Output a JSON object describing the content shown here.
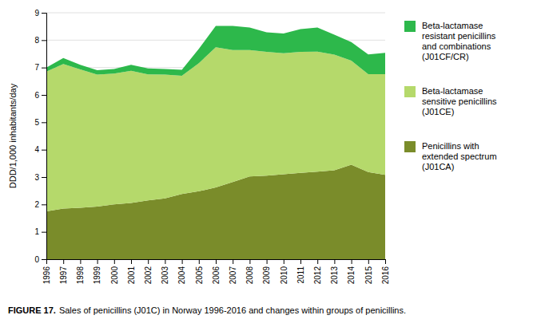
{
  "chart_data": {
    "type": "area",
    "stacked": true,
    "grid": true,
    "y_label": "DDD/1,000 inhabitants/day",
    "annotations": [
      "FIGURE 17.",
      "Sales of penicillins (J01C) in Norway 1996-2016 and changes within groups of penicillins."
    ],
    "x": [
      1996,
      1997,
      1998,
      1999,
      2000,
      2001,
      2002,
      2003,
      2004,
      2005,
      2006,
      2007,
      2008,
      2009,
      2010,
      2011,
      2012,
      2013,
      2014,
      2015,
      2016
    ],
    "xlim": [
      1996,
      2016
    ],
    "xticks": [
      1996,
      1997,
      1998,
      1999,
      2000,
      2001,
      2002,
      2003,
      2004,
      2005,
      2006,
      2007,
      2008,
      2009,
      2010,
      2011,
      2012,
      2013,
      2014,
      2015,
      2016
    ],
    "ylim": [
      0,
      9
    ],
    "yticks": [
      0,
      1,
      2,
      3,
      4,
      5,
      6,
      7,
      8,
      9
    ],
    "series": [
      {
        "name": "Penicillins with\nextended spectrum\n(J01CA)",
        "color": "#7a8c2a",
        "values": [
          1.75,
          1.85,
          1.88,
          1.92,
          2.0,
          2.05,
          2.15,
          2.22,
          2.38,
          2.48,
          2.62,
          2.82,
          3.02,
          3.05,
          3.1,
          3.15,
          3.2,
          3.25,
          3.45,
          3.18,
          3.08
        ]
      },
      {
        "name": "Beta-lactamase\nsensitive penicillins\n(J01CE)",
        "color": "#b5d96b",
        "values": [
          5.1,
          5.28,
          5.05,
          4.82,
          4.78,
          4.83,
          4.6,
          4.52,
          4.32,
          4.68,
          5.12,
          4.82,
          4.62,
          4.52,
          4.42,
          4.42,
          4.38,
          4.22,
          3.8,
          3.58,
          3.68
        ]
      },
      {
        "name": "Beta-lactamase\nresistant penicillins\nand combinations\n(J01CF/CR)",
        "color": "#2db84b",
        "values": [
          0.15,
          0.22,
          0.17,
          0.16,
          0.17,
          0.22,
          0.22,
          0.21,
          0.22,
          0.52,
          0.78,
          0.88,
          0.82,
          0.72,
          0.72,
          0.83,
          0.88,
          0.73,
          0.68,
          0.72,
          0.78
        ]
      }
    ]
  }
}
